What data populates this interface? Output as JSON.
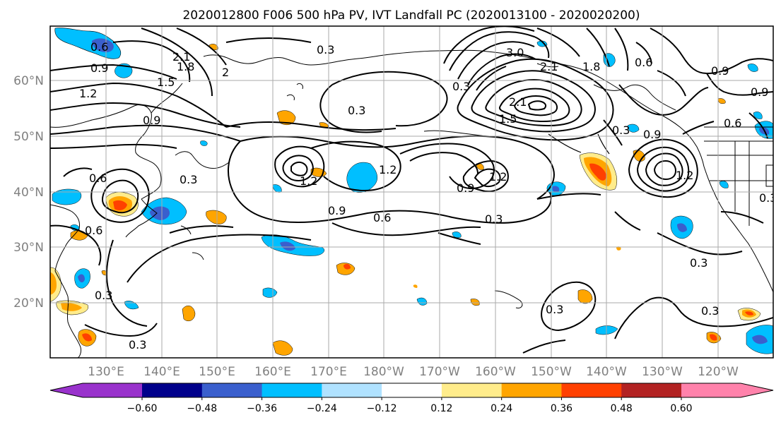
{
  "title": "2020012800 F006 500 hPa PV, IVT Landfall PC (2020013100 - 2020020200)",
  "map": {
    "lat_ticks": [
      "60°N",
      "50°N",
      "40°N",
      "30°N",
      "20°N"
    ],
    "lon_ticks": [
      "130°E",
      "140°E",
      "150°E",
      "160°E",
      "170°E",
      "180°W",
      "170°W",
      "160°W",
      "150°W",
      "140°W",
      "130°W",
      "120°W"
    ],
    "grid_color": "#aaaaaa"
  },
  "colorbar": {
    "levels": [
      "−0.60",
      "−0.48",
      "−0.36",
      "−0.24",
      "−0.12",
      "0.12",
      "0.24",
      "0.36",
      "0.48",
      "0.60"
    ],
    "colors": [
      "#9932cc",
      "#00008b",
      "#3a5fcd",
      "#00bfff",
      "#b0e2ff",
      "#ffffff",
      "#ffec8b",
      "#ffa500",
      "#ff4000",
      "#b22222",
      "#ff82ab"
    ]
  },
  "contour_labels": [
    {
      "text": "0.6"
    },
    {
      "text": "0.9"
    },
    {
      "text": "2.1"
    },
    {
      "text": "1.8"
    },
    {
      "text": "1.5"
    },
    {
      "text": "1.2"
    },
    {
      "text": "2"
    },
    {
      "text": "0.9"
    },
    {
      "text": "0.3"
    },
    {
      "text": "3.0"
    },
    {
      "text": "2.1"
    },
    {
      "text": "1.8"
    },
    {
      "text": "0.6"
    },
    {
      "text": "0.9"
    },
    {
      "text": "0.9"
    },
    {
      "text": "0.3"
    },
    {
      "text": "0.6"
    },
    {
      "text": "1.2"
    },
    {
      "text": "0.6"
    },
    {
      "text": "0.3"
    },
    {
      "text": "1.2"
    },
    {
      "text": "0.9"
    },
    {
      "text": "1.2"
    },
    {
      "text": "0.9"
    },
    {
      "text": "0.6"
    },
    {
      "text": "0.3"
    },
    {
      "text": "0.6"
    },
    {
      "text": "0.3"
    },
    {
      "text": "0.3"
    },
    {
      "text": "0.3"
    },
    {
      "text": "0.3"
    },
    {
      "text": "0.3"
    },
    {
      "text": "0.3"
    },
    {
      "text": "2.1"
    },
    {
      "text": "1.5"
    },
    {
      "text": "0.3"
    },
    {
      "text": "0.9"
    },
    {
      "text": "1.2"
    },
    {
      "text": "0.3"
    }
  ]
}
